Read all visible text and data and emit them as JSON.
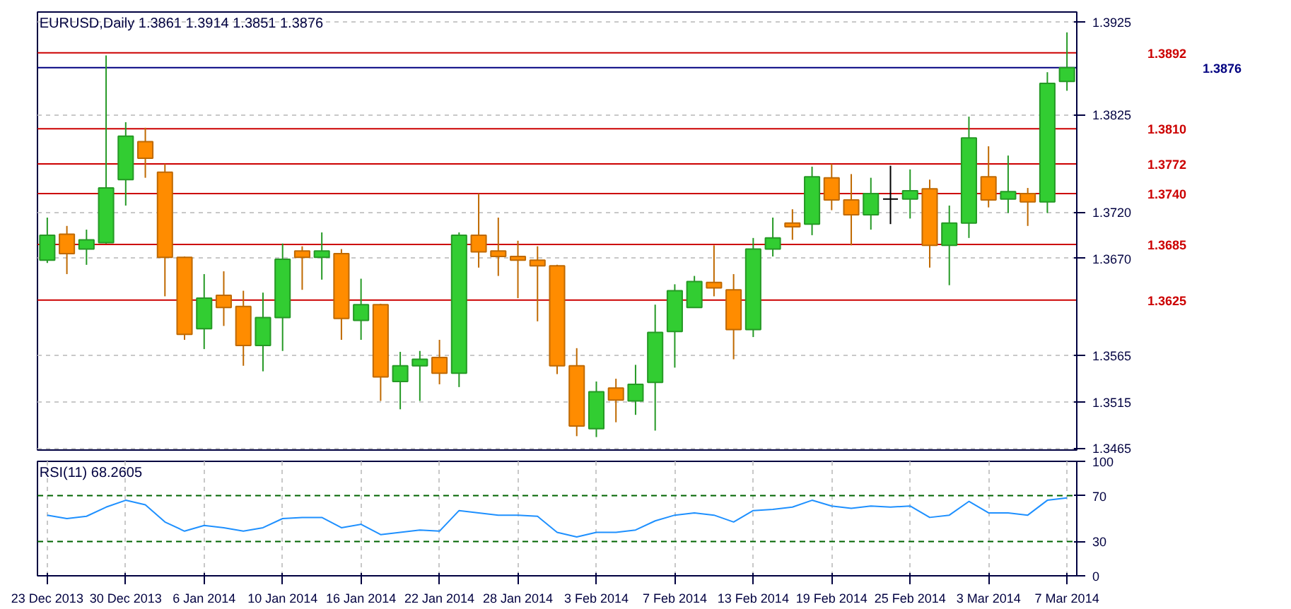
{
  "chart_data": [
    {
      "type": "candlestick",
      "title": "EURUSD,Daily  1.3861 1.3914 1.3851 1.3876",
      "categories": [
        null,
        null,
        null,
        null,
        null,
        null,
        null,
        null,
        null,
        null,
        null,
        null,
        null,
        null,
        null,
        null,
        null,
        null,
        null,
        null,
        null,
        null,
        null,
        null,
        null,
        null,
        null,
        null,
        null,
        null,
        null,
        null,
        null,
        null,
        null,
        null,
        null,
        null,
        null,
        null,
        null,
        null,
        null,
        null,
        null,
        null,
        null,
        null,
        null,
        null,
        null,
        null,
        null
      ],
      "ohlc": [
        [
          1.3668,
          1.3714,
          1.3665,
          1.3695
        ],
        [
          1.3696,
          1.3705,
          1.3653,
          1.3675
        ],
        [
          1.368,
          1.3701,
          1.3663,
          1.369
        ],
        [
          1.3687,
          1.3889,
          1.3686,
          1.3746
        ],
        [
          1.3755,
          1.3817,
          1.3727,
          1.3802
        ],
        [
          1.3796,
          1.3811,
          1.3757,
          1.3778
        ],
        [
          1.3763,
          1.3772,
          1.3629,
          1.3671
        ],
        [
          1.3671,
          1.3672,
          1.3582,
          1.3588
        ],
        [
          1.3594,
          1.3653,
          1.3572,
          1.3627
        ],
        [
          1.363,
          1.3656,
          1.3597,
          1.3617
        ],
        [
          1.3618,
          1.3635,
          1.3554,
          1.3576
        ],
        [
          1.3576,
          1.3633,
          1.3548,
          1.3606
        ],
        [
          1.3606,
          1.3686,
          1.357,
          1.3669
        ],
        [
          1.3678,
          1.3683,
          1.3636,
          1.3671
        ],
        [
          1.3671,
          1.3698,
          1.3647,
          1.3678
        ],
        [
          1.3675,
          1.368,
          1.3582,
          1.3605
        ],
        [
          1.3603,
          1.3648,
          1.3582,
          1.362
        ],
        [
          1.362,
          1.3621,
          1.3516,
          1.3542
        ],
        [
          1.3537,
          1.3569,
          1.3507,
          1.3554
        ],
        [
          1.3554,
          1.357,
          1.3516,
          1.3561
        ],
        [
          1.3563,
          1.3582,
          1.3534,
          1.3546
        ],
        [
          1.3546,
          1.3698,
          1.3531,
          1.3695
        ],
        [
          1.3695,
          1.374,
          1.366,
          1.3677
        ],
        [
          1.3678,
          1.3714,
          1.3651,
          1.3672
        ],
        [
          1.3672,
          1.3689,
          1.3627,
          1.3668
        ],
        [
          1.3668,
          1.3683,
          1.3602,
          1.3662
        ],
        [
          1.3662,
          1.3663,
          1.3545,
          1.3554
        ],
        [
          1.3554,
          1.3573,
          1.3478,
          1.3489
        ],
        [
          1.3486,
          1.3537,
          1.3477,
          1.3526
        ],
        [
          1.353,
          1.354,
          1.3493,
          1.3517
        ],
        [
          1.3516,
          1.3555,
          1.3501,
          1.3534
        ],
        [
          1.3536,
          1.362,
          1.3484,
          1.359
        ],
        [
          1.3591,
          1.3642,
          1.3552,
          1.3635
        ],
        [
          1.3617,
          1.3651,
          1.3617,
          1.3645
        ],
        [
          1.3644,
          1.3684,
          1.3629,
          1.3638
        ],
        [
          1.3636,
          1.3653,
          1.3561,
          1.3593
        ],
        [
          1.3593,
          1.3692,
          1.3585,
          1.368
        ],
        [
          1.368,
          1.3714,
          1.3672,
          1.3692
        ],
        [
          1.3708,
          1.3723,
          1.369,
          1.3704
        ],
        [
          1.3707,
          1.3769,
          1.3695,
          1.3758
        ],
        [
          1.3757,
          1.3772,
          1.3722,
          1.3733
        ],
        [
          1.3733,
          1.3761,
          1.3684,
          1.3717
        ],
        [
          1.3717,
          1.3757,
          1.3701,
          1.374
        ],
        [
          1.3734,
          1.377,
          1.3707,
          1.3734
        ],
        [
          1.3734,
          1.3766,
          1.3713,
          1.3743
        ],
        [
          1.3745,
          1.3755,
          1.366,
          1.3684
        ],
        [
          1.3684,
          1.3727,
          1.3641,
          1.3708
        ],
        [
          1.3708,
          1.3823,
          1.3692,
          1.38
        ],
        [
          1.3758,
          1.3791,
          1.3725,
          1.3733
        ],
        [
          1.3734,
          1.3781,
          1.3719,
          1.3742
        ],
        [
          1.374,
          1.3746,
          1.3705,
          1.3731
        ],
        [
          1.3731,
          1.3871,
          1.3719,
          1.3859
        ],
        [
          1.3861,
          1.3914,
          1.3851,
          1.3876
        ]
      ],
      "colors": [
        "#32cd32",
        "#ff8c00",
        "#32cd32",
        "#32cd32",
        "#32cd32",
        "#ff8c00",
        "#ff8c00",
        "#ff8c00",
        "#32cd32",
        "#ff8c00",
        "#ff8c00",
        "#32cd32",
        "#32cd32",
        "#ff8c00",
        "#32cd32",
        "#ff8c00",
        "#32cd32",
        "#ff8c00",
        "#32cd32",
        "#32cd32",
        "#ff8c00",
        "#32cd32",
        "#ff8c00",
        "#ff8c00",
        "#ff8c00",
        "#ff8c00",
        "#ff8c00",
        "#ff8c00",
        "#32cd32",
        "#ff8c00",
        "#32cd32",
        "#32cd32",
        "#32cd32",
        "#32cd32",
        "#ff8c00",
        "#ff8c00",
        "#32cd32",
        "#32cd32",
        "#ff8c00",
        "#32cd32",
        "#ff8c00",
        "#ff8c00",
        "#32cd32",
        "#000000",
        "#32cd32",
        "#ff8c00",
        "#32cd32",
        "#32cd32",
        "#ff8c00",
        "#32cd32",
        "#ff8c00",
        "#32cd32",
        "#32cd32"
      ],
      "ylim": [
        1.3463,
        1.3936
      ],
      "yticks": [
        1.3465,
        1.3515,
        1.3565,
        {
          "value": 1.367,
          "label": "1.3670"
        },
        {
          "value": 1.372,
          "label": "1.3720"
        },
        1.3825,
        1.3925
      ],
      "grid": true,
      "tick_labels": "y",
      "ref_lines": [
        {
          "axis": "y",
          "value": 1.3892,
          "label": "1.3892",
          "color": "#cc0000"
        },
        {
          "axis": "y",
          "value": 1.381,
          "label": "1.3810",
          "color": "#cc0000"
        },
        {
          "axis": "y",
          "value": 1.3772,
          "label": "1.3772",
          "color": "#cc0000"
        },
        {
          "axis": "y",
          "value": 1.374,
          "label": "1.3740",
          "color": "#cc0000"
        },
        {
          "axis": "y",
          "value": 1.3685,
          "label": "1.3685",
          "color": "#cc0000"
        },
        {
          "axis": "y",
          "value": 1.3625,
          "label": "1.3625",
          "color": "#cc0000"
        },
        {
          "axis": "y",
          "value": 1.3876,
          "label": "1.3876",
          "color": "#000080"
        }
      ]
    },
    {
      "type": "line",
      "title": "RSI(11) 68.2605",
      "categories": [
        "23 Dec 2013",
        null,
        null,
        null,
        "30 Dec 2013",
        null,
        null,
        null,
        "6 Jan 2014",
        null,
        null,
        null,
        "10 Jan 2014",
        null,
        null,
        null,
        "16 Jan 2014",
        null,
        null,
        null,
        "22 Jan 2014",
        null,
        null,
        null,
        "28 Jan 2014",
        null,
        null,
        null,
        "3 Feb 2014",
        null,
        null,
        null,
        "7 Feb 2014",
        null,
        null,
        null,
        "13 Feb 2014",
        null,
        null,
        null,
        "19 Feb 2014",
        null,
        null,
        null,
        "25 Feb 2014",
        null,
        null,
        null,
        "3 Mar 2014",
        null,
        null,
        null,
        "7 Mar 2014"
      ],
      "series": [
        {
          "color": "#1e90ff",
          "values": [
            53,
            50,
            52,
            60,
            66,
            62,
            47,
            39,
            44,
            42,
            39,
            42,
            50,
            51,
            51,
            42,
            45,
            36,
            38,
            40,
            39,
            57,
            55,
            53,
            53,
            52,
            38,
            34,
            38,
            38,
            40,
            48,
            53,
            55,
            53,
            47,
            57,
            58,
            60,
            66,
            61,
            59,
            61,
            60,
            61,
            51,
            53,
            65,
            55,
            55,
            53,
            66,
            68
          ]
        }
      ],
      "ylim": [
        0,
        100
      ],
      "yticks": [
        0,
        30,
        70,
        100
      ],
      "grid": "x",
      "ref_lines": [
        {
          "axis": "y",
          "value": 70,
          "color": "#006400",
          "line_style": "dashed"
        },
        {
          "axis": "y",
          "value": 30,
          "color": "#006400",
          "line_style": "dashed"
        }
      ]
    }
  ]
}
